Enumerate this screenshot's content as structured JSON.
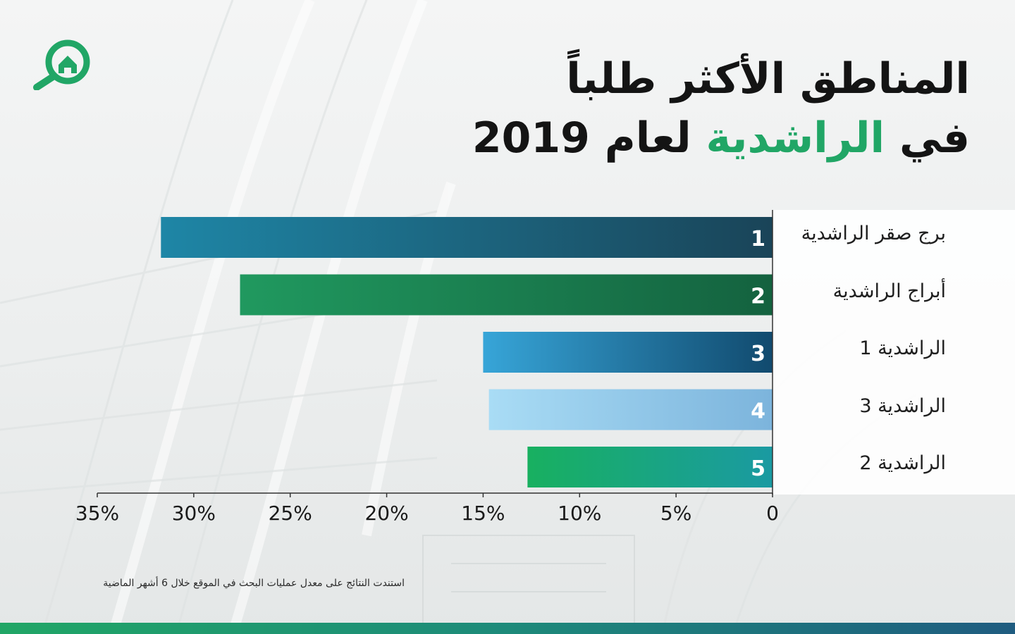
{
  "brand": {
    "logo_icon": "house-magnifier-icon",
    "color": "#21a666"
  },
  "header": {
    "title_line1": "المناطق الأكثر طلباً",
    "title_line2_prefix": "في",
    "title_line2_accent": "الراشدية",
    "title_line2_suffix": "لعام 2019"
  },
  "chart_data": {
    "type": "bar",
    "orientation": "horizontal",
    "axis_direction": "right-to-left",
    "categories": [
      "برج صقر الراشدية",
      "أبراج الراشدية",
      "الراشدية 1",
      "الراشدية 3",
      "الراشدية 2"
    ],
    "ranks": [
      "1",
      "2",
      "3",
      "4",
      "5"
    ],
    "values": [
      31.7,
      27.6,
      15.0,
      14.7,
      12.7
    ],
    "unit": "%",
    "xlim": [
      0,
      35
    ],
    "xticks": [
      0,
      5,
      10,
      15,
      20,
      25,
      30,
      35
    ],
    "xtick_labels": [
      "0",
      "5%",
      "10%",
      "15%",
      "20%",
      "25%",
      "30%",
      "35%"
    ],
    "grid": false,
    "bar_colors": [
      [
        "#1e86a6",
        "#1a4458"
      ],
      [
        "#20995f",
        "#14623f"
      ],
      [
        "#37a5d8",
        "#114a6e"
      ],
      [
        "#a9dcf5",
        "#7cb4dc"
      ],
      [
        "#18b060",
        "#1a9aa2"
      ]
    ],
    "rank_label_color": "#ffffff"
  },
  "footnote": "استندت النتائج على معدل عمليات البحث في الموقع خلال 6 أشهر الماضية"
}
